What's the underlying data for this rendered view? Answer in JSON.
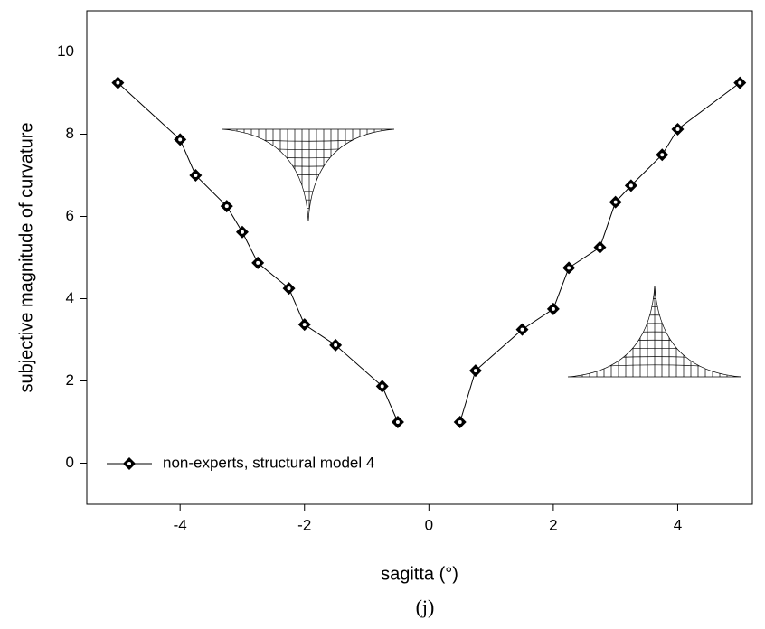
{
  "chart_data": {
    "type": "line",
    "x_label": "sagitta (°)",
    "y_label": "subjective magnitude of curvature",
    "caption": "(j)",
    "xlim": [
      -5.5,
      5.2
    ],
    "ylim": [
      -1,
      11
    ],
    "xticks": [
      -4,
      -2,
      0,
      2,
      4
    ],
    "yticks": [
      0,
      2,
      4,
      6,
      8,
      10
    ],
    "legend": "lower left",
    "series": [
      {
        "name": "non-experts, structural model 4",
        "color": "#000000",
        "x": [
          -5,
          -4,
          -3.75,
          -3.25,
          -3,
          -2.75,
          -2.25,
          -2,
          -1.5,
          -0.75,
          -0.5,
          null,
          0.5,
          0.75,
          1.5,
          2,
          2.25,
          2.75,
          3,
          3.25,
          3.75,
          4,
          5
        ],
        "values": [
          9.25,
          7.87,
          7.0,
          6.25,
          5.62,
          4.87,
          4.25,
          3.37,
          2.87,
          1.87,
          1.0,
          null,
          1.0,
          2.25,
          3.25,
          3.75,
          4.75,
          5.25,
          6.35,
          6.75,
          7.5,
          8.12,
          9.25
        ]
      }
    ]
  }
}
